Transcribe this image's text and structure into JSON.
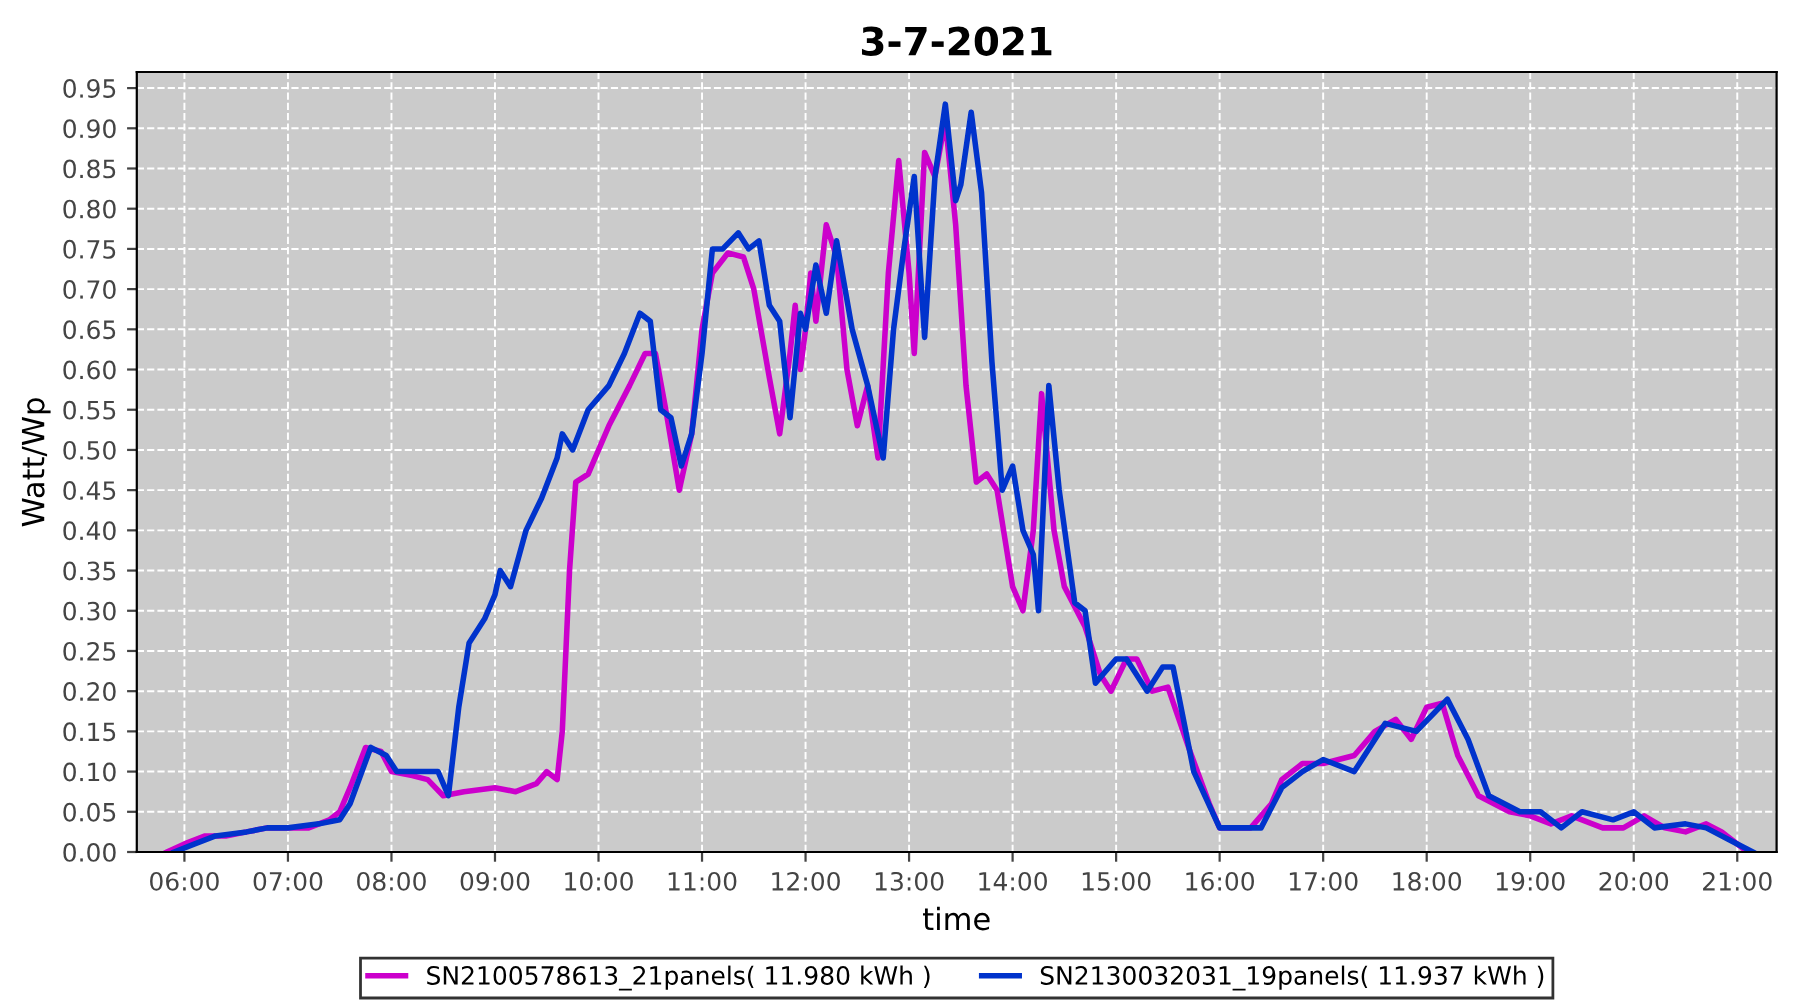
{
  "chart_data": {
    "type": "line",
    "title": "3-7-2021",
    "xlabel": "time",
    "ylabel": "Watt/Wp",
    "xlim": [
      5.54,
      21.38
    ],
    "ylim": [
      0,
      0.97
    ],
    "xticks": [
      {
        "value": 6,
        "label": "06:00"
      },
      {
        "value": 7,
        "label": "07:00"
      },
      {
        "value": 8,
        "label": "08:00"
      },
      {
        "value": 9,
        "label": "09:00"
      },
      {
        "value": 10,
        "label": "10:00"
      },
      {
        "value": 11,
        "label": "11:00"
      },
      {
        "value": 12,
        "label": "12:00"
      },
      {
        "value": 13,
        "label": "13:00"
      },
      {
        "value": 14,
        "label": "14:00"
      },
      {
        "value": 15,
        "label": "15:00"
      },
      {
        "value": 16,
        "label": "16:00"
      },
      {
        "value": 17,
        "label": "17:00"
      },
      {
        "value": 18,
        "label": "18:00"
      },
      {
        "value": 19,
        "label": "19:00"
      },
      {
        "value": 20,
        "label": "20:00"
      },
      {
        "value": 21,
        "label": "21:00"
      }
    ],
    "yticks": [
      {
        "value": 0,
        "label": "0.00"
      },
      {
        "value": 0.05,
        "label": "0.05"
      },
      {
        "value": 0.1,
        "label": "0.10"
      },
      {
        "value": 0.15,
        "label": "0.15"
      },
      {
        "value": 0.2,
        "label": "0.20"
      },
      {
        "value": 0.25,
        "label": "0.25"
      },
      {
        "value": 0.3,
        "label": "0.30"
      },
      {
        "value": 0.35,
        "label": "0.35"
      },
      {
        "value": 0.4,
        "label": "0.40"
      },
      {
        "value": 0.45,
        "label": "0.45"
      },
      {
        "value": 0.5,
        "label": "0.50"
      },
      {
        "value": 0.55,
        "label": "0.55"
      },
      {
        "value": 0.6,
        "label": "0.60"
      },
      {
        "value": 0.65,
        "label": "0.65"
      },
      {
        "value": 0.7,
        "label": "0.70"
      },
      {
        "value": 0.75,
        "label": "0.75"
      },
      {
        "value": 0.8,
        "label": "0.80"
      },
      {
        "value": 0.85,
        "label": "0.85"
      },
      {
        "value": 0.9,
        "label": "0.90"
      },
      {
        "value": 0.95,
        "label": "0.95"
      }
    ],
    "grid": true,
    "legend": "bottom",
    "line_style": "solid",
    "series": [
      {
        "name": "SN2100578613_21panels( 11.980 kWh )",
        "color": "#cc00cc",
        "x": [
          5.83,
          6.0,
          6.2,
          6.4,
          6.6,
          6.8,
          7.0,
          7.2,
          7.4,
          7.5,
          7.6,
          7.75,
          7.9,
          8.0,
          8.2,
          8.35,
          8.5,
          8.7,
          9.0,
          9.2,
          9.4,
          9.5,
          9.6,
          9.65,
          9.72,
          9.78,
          9.9,
          10.1,
          10.3,
          10.45,
          10.55,
          10.65,
          10.78,
          10.9,
          11.0,
          11.1,
          11.25,
          11.4,
          11.5,
          11.65,
          11.75,
          11.85,
          11.9,
          11.95,
          12.0,
          12.05,
          12.1,
          12.2,
          12.3,
          12.4,
          12.5,
          12.6,
          12.7,
          12.8,
          12.9,
          13.0,
          13.05,
          13.15,
          13.25,
          13.35,
          13.45,
          13.55,
          13.65,
          13.75,
          13.85,
          14.0,
          14.1,
          14.2,
          14.28,
          14.4,
          14.5,
          14.7,
          14.85,
          14.95,
          15.1,
          15.2,
          15.35,
          15.5,
          15.7,
          15.9,
          16.0,
          16.3,
          16.5,
          16.6,
          16.8,
          17.0,
          17.3,
          17.5,
          17.7,
          17.85,
          18.0,
          18.15,
          18.3,
          18.5,
          18.8,
          19.0,
          19.2,
          19.4,
          19.7,
          19.9,
          20.1,
          20.3,
          20.5,
          20.7,
          20.85,
          21.0,
          21.1
        ],
        "values": [
          0.0,
          0.01,
          0.02,
          0.02,
          0.025,
          0.03,
          0.03,
          0.03,
          0.04,
          0.05,
          0.08,
          0.13,
          0.125,
          0.1,
          0.095,
          0.09,
          0.07,
          0.075,
          0.08,
          0.075,
          0.085,
          0.1,
          0.09,
          0.15,
          0.35,
          0.46,
          0.47,
          0.53,
          0.58,
          0.62,
          0.62,
          0.55,
          0.45,
          0.52,
          0.65,
          0.72,
          0.745,
          0.74,
          0.7,
          0.59,
          0.52,
          0.62,
          0.68,
          0.6,
          0.65,
          0.72,
          0.66,
          0.78,
          0.74,
          0.6,
          0.53,
          0.58,
          0.49,
          0.72,
          0.86,
          0.72,
          0.62,
          0.87,
          0.84,
          0.91,
          0.78,
          0.58,
          0.46,
          0.47,
          0.45,
          0.33,
          0.3,
          0.4,
          0.57,
          0.4,
          0.33,
          0.28,
          0.22,
          0.2,
          0.24,
          0.24,
          0.2,
          0.205,
          0.13,
          0.06,
          0.03,
          0.03,
          0.06,
          0.09,
          0.11,
          0.11,
          0.12,
          0.15,
          0.165,
          0.14,
          0.18,
          0.185,
          0.12,
          0.07,
          0.05,
          0.045,
          0.035,
          0.045,
          0.03,
          0.03,
          0.045,
          0.03,
          0.025,
          0.035,
          0.025,
          0.01,
          0.0
        ]
      },
      {
        "name": "SN2130032031_19panels( 11.937 kWh )",
        "color": "#0033cc",
        "x": [
          5.9,
          6.1,
          6.3,
          6.6,
          6.8,
          7.0,
          7.3,
          7.5,
          7.6,
          7.8,
          7.95,
          8.05,
          8.3,
          8.45,
          8.55,
          8.65,
          8.75,
          8.9,
          9.0,
          9.05,
          9.15,
          9.3,
          9.45,
          9.6,
          9.65,
          9.75,
          9.9,
          10.1,
          10.25,
          10.4,
          10.5,
          10.6,
          10.7,
          10.8,
          10.9,
          11.0,
          11.1,
          11.2,
          11.35,
          11.45,
          11.55,
          11.65,
          11.75,
          11.85,
          11.95,
          12.0,
          12.1,
          12.2,
          12.3,
          12.45,
          12.6,
          12.75,
          12.85,
          12.95,
          13.05,
          13.15,
          13.25,
          13.35,
          13.45,
          13.5,
          13.6,
          13.7,
          13.8,
          13.9,
          14.0,
          14.1,
          14.2,
          14.25,
          14.35,
          14.45,
          14.6,
          14.7,
          14.8,
          15.0,
          15.1,
          15.3,
          15.45,
          15.55,
          15.75,
          16.0,
          16.4,
          16.6,
          16.8,
          17.0,
          17.3,
          17.6,
          17.9,
          18.2,
          18.4,
          18.6,
          18.9,
          19.1,
          19.3,
          19.5,
          19.8,
          20.0,
          20.2,
          20.5,
          20.7,
          21.0,
          21.15
        ],
        "values": [
          0.0,
          0.01,
          0.02,
          0.025,
          0.03,
          0.03,
          0.035,
          0.04,
          0.06,
          0.13,
          0.12,
          0.1,
          0.1,
          0.1,
          0.07,
          0.18,
          0.26,
          0.29,
          0.32,
          0.35,
          0.33,
          0.4,
          0.44,
          0.49,
          0.52,
          0.5,
          0.55,
          0.58,
          0.62,
          0.67,
          0.66,
          0.55,
          0.54,
          0.48,
          0.52,
          0.62,
          0.75,
          0.75,
          0.77,
          0.75,
          0.76,
          0.68,
          0.66,
          0.54,
          0.67,
          0.65,
          0.73,
          0.67,
          0.76,
          0.65,
          0.58,
          0.49,
          0.65,
          0.75,
          0.84,
          0.64,
          0.84,
          0.93,
          0.81,
          0.83,
          0.92,
          0.82,
          0.61,
          0.45,
          0.48,
          0.4,
          0.37,
          0.3,
          0.58,
          0.45,
          0.31,
          0.3,
          0.21,
          0.24,
          0.24,
          0.2,
          0.23,
          0.23,
          0.1,
          0.03,
          0.03,
          0.08,
          0.1,
          0.115,
          0.1,
          0.16,
          0.15,
          0.19,
          0.14,
          0.07,
          0.05,
          0.05,
          0.03,
          0.05,
          0.04,
          0.05,
          0.03,
          0.035,
          0.03,
          0.01,
          0.0
        ]
      }
    ]
  }
}
